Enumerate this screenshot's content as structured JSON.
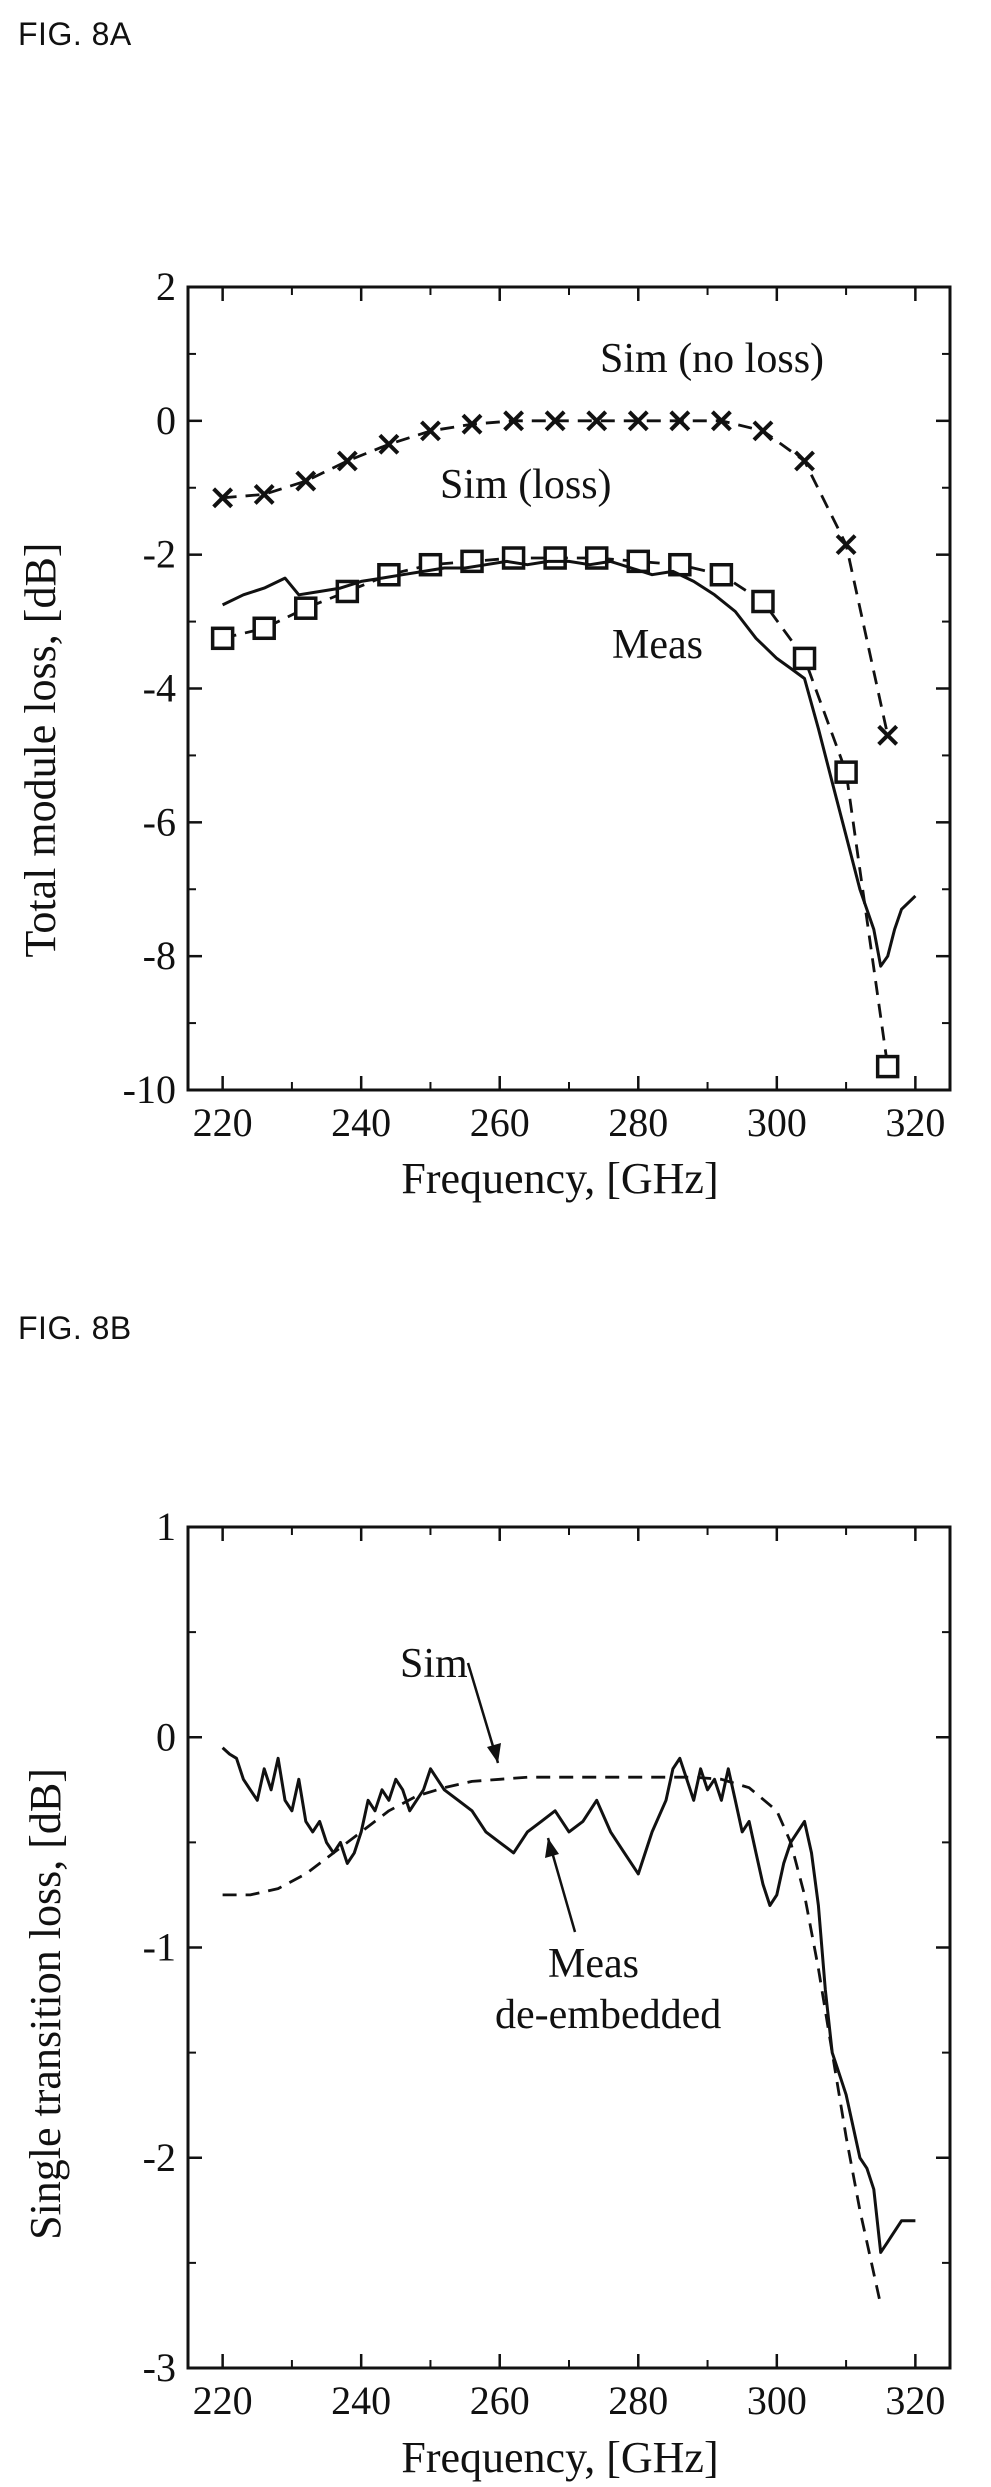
{
  "fig_a_label": "FIG. 8A",
  "fig_b_label": "FIG. 8B",
  "chart_data": [
    {
      "type": "line",
      "xlabel": "Frequency, [GHz]",
      "ylabel": "Total module loss, [dB]",
      "xlim": [
        215,
        325
      ],
      "ylim": [
        -10,
        2
      ],
      "xticks": [
        220,
        240,
        260,
        280,
        300,
        320
      ],
      "yticks": [
        -10,
        -8,
        -6,
        -4,
        -2,
        0,
        2
      ],
      "annotations": [
        "Sim (no loss)",
        "Sim (loss)",
        "Meas"
      ],
      "series": [
        {
          "name": "Sim (no loss)",
          "style": "dashed",
          "marker": "x",
          "x": [
            220,
            226,
            232,
            238,
            244,
            250,
            256,
            262,
            268,
            274,
            280,
            286,
            292,
            298,
            304,
            310,
            316
          ],
          "y": [
            -1.15,
            -1.1,
            -0.9,
            -0.6,
            -0.35,
            -0.15,
            -0.05,
            0,
            0,
            0,
            0,
            0,
            0,
            -0.15,
            -0.6,
            -1.85,
            -4.7
          ]
        },
        {
          "name": "Sim (loss)",
          "style": "dashed",
          "marker": "square",
          "x": [
            220,
            226,
            232,
            238,
            244,
            250,
            256,
            262,
            268,
            274,
            280,
            286,
            292,
            298,
            304,
            310,
            316
          ],
          "y": [
            -3.25,
            -3.1,
            -2.8,
            -2.55,
            -2.3,
            -2.15,
            -2.1,
            -2.05,
            -2.05,
            -2.05,
            -2.1,
            -2.15,
            -2.3,
            -2.7,
            -3.55,
            -5.25,
            -9.65
          ]
        },
        {
          "name": "Meas",
          "style": "solid",
          "marker": "none",
          "x": [
            220,
            223,
            226,
            229,
            231,
            234,
            237,
            240,
            243,
            246,
            249,
            252,
            255,
            258,
            261,
            264,
            267,
            270,
            273,
            276,
            279,
            282,
            285,
            288,
            291,
            294,
            297,
            300,
            302,
            304,
            306,
            308,
            310,
            312,
            314,
            315,
            316,
            317,
            318,
            320
          ],
          "y": [
            -2.75,
            -2.6,
            -2.5,
            -2.35,
            -2.6,
            -2.55,
            -2.5,
            -2.4,
            -2.35,
            -2.3,
            -2.25,
            -2.2,
            -2.2,
            -2.15,
            -2.1,
            -2.15,
            -2.1,
            -2.1,
            -2.15,
            -2.1,
            -2.2,
            -2.3,
            -2.25,
            -2.4,
            -2.6,
            -2.85,
            -3.25,
            -3.55,
            -3.7,
            -3.85,
            -4.6,
            -5.4,
            -6.2,
            -7.0,
            -7.6,
            -8.15,
            -8.0,
            -7.6,
            -7.3,
            -7.1
          ]
        }
      ]
    },
    {
      "type": "line",
      "xlabel": "Frequency, [GHz]",
      "ylabel": "Single transition loss, [dB]",
      "xlim": [
        215,
        325
      ],
      "ylim": [
        -3,
        1
      ],
      "xticks": [
        220,
        240,
        260,
        280,
        300,
        320
      ],
      "yticks": [
        -3,
        -2,
        -1,
        0,
        1
      ],
      "annotations": [
        "Sim",
        "Meas",
        "de-embedded"
      ],
      "series": [
        {
          "name": "Sim",
          "style": "dashed",
          "x": [
            220,
            224,
            228,
            232,
            236,
            240,
            244,
            248,
            252,
            256,
            260,
            264,
            268,
            272,
            276,
            280,
            284,
            288,
            292,
            296,
            300,
            302,
            304,
            306,
            308,
            310,
            312,
            314,
            315
          ],
          "y": [
            -0.75,
            -0.75,
            -0.72,
            -0.65,
            -0.55,
            -0.45,
            -0.35,
            -0.28,
            -0.24,
            -0.21,
            -0.2,
            -0.19,
            -0.19,
            -0.19,
            -0.19,
            -0.19,
            -0.19,
            -0.19,
            -0.2,
            -0.24,
            -0.35,
            -0.5,
            -0.75,
            -1.1,
            -1.5,
            -1.9,
            -2.25,
            -2.55,
            -2.7
          ]
        },
        {
          "name": "Meas de-embedded",
          "style": "solid",
          "x": [
            220,
            221,
            222,
            223,
            224,
            225,
            226,
            227,
            228,
            229,
            230,
            231,
            232,
            233,
            234,
            235,
            236,
            237,
            238,
            239,
            240,
            241,
            242,
            243,
            244,
            245,
            246,
            247,
            248,
            249,
            250,
            252,
            254,
            256,
            258,
            260,
            262,
            264,
            266,
            268,
            270,
            272,
            274,
            276,
            278,
            280,
            282,
            284,
            285,
            286,
            287,
            288,
            289,
            290,
            291,
            292,
            293,
            294,
            295,
            296,
            297,
            298,
            299,
            300,
            301,
            302,
            303,
            304,
            305,
            306,
            307,
            308,
            309,
            310,
            311,
            312,
            313,
            314,
            315,
            316,
            318,
            320
          ],
          "y": [
            -0.05,
            -0.08,
            -0.1,
            -0.2,
            -0.25,
            -0.3,
            -0.15,
            -0.25,
            -0.1,
            -0.3,
            -0.35,
            -0.2,
            -0.4,
            -0.45,
            -0.4,
            -0.5,
            -0.55,
            -0.5,
            -0.6,
            -0.55,
            -0.45,
            -0.3,
            -0.35,
            -0.25,
            -0.3,
            -0.2,
            -0.25,
            -0.35,
            -0.3,
            -0.25,
            -0.15,
            -0.25,
            -0.3,
            -0.35,
            -0.45,
            -0.5,
            -0.55,
            -0.45,
            -0.4,
            -0.35,
            -0.45,
            -0.4,
            -0.3,
            -0.45,
            -0.55,
            -0.65,
            -0.45,
            -0.3,
            -0.15,
            -0.1,
            -0.2,
            -0.3,
            -0.15,
            -0.25,
            -0.2,
            -0.3,
            -0.15,
            -0.3,
            -0.45,
            -0.4,
            -0.55,
            -0.7,
            -0.8,
            -0.75,
            -0.6,
            -0.5,
            -0.45,
            -0.4,
            -0.55,
            -0.8,
            -1.2,
            -1.5,
            -1.6,
            -1.7,
            -1.85,
            -2.0,
            -2.05,
            -2.15,
            -2.45,
            -2.4,
            -2.3,
            -2.3
          ]
        }
      ]
    }
  ]
}
